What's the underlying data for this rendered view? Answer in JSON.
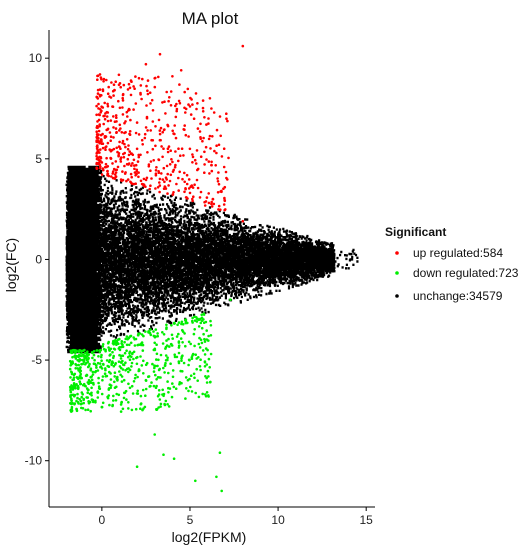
{
  "chart_data": {
    "type": "scatter",
    "title": "MA plot",
    "xlabel": "log2(FPKM)",
    "ylabel": "log2(FC)",
    "xlim": [
      -3.0,
      15.5
    ],
    "ylim": [
      -12.3,
      11.4
    ],
    "x_ticks": [
      0,
      5,
      10,
      15
    ],
    "y_ticks": [
      -10,
      -5,
      0,
      5,
      10
    ],
    "grid": false,
    "legend": {
      "title": "Significant",
      "position": "right",
      "entries": [
        {
          "label": "up regulated:584",
          "color": "#ff0000"
        },
        {
          "label": "down regulated:723",
          "color": "#00ee00"
        },
        {
          "label": "unchange:34579",
          "color": "#000000"
        }
      ]
    },
    "series": [
      {
        "name": "up regulated",
        "color": "#ff0000",
        "count": 584,
        "points": [
          [
            8.0,
            10.6
          ],
          [
            3.3,
            10.2
          ],
          [
            2.5,
            9.7
          ],
          [
            4.5,
            9.4
          ],
          [
            4.0,
            9.1
          ],
          [
            3.0,
            9.0
          ],
          [
            1.8,
            8.6
          ],
          [
            2.2,
            8.2
          ],
          [
            1.2,
            7.9
          ],
          [
            0.6,
            7.6
          ],
          [
            1.5,
            7.4
          ],
          [
            0.3,
            7.1
          ],
          [
            2.0,
            6.8
          ],
          [
            0.8,
            6.5
          ],
          [
            1.6,
            6.2
          ],
          [
            3.5,
            5.5
          ],
          [
            6.3,
            3.0
          ],
          [
            8.0,
            1.9
          ]
        ]
      },
      {
        "name": "down regulated",
        "color": "#00ee00",
        "count": 723,
        "points": [
          [
            6.8,
            -11.5
          ],
          [
            5.3,
            -11.0
          ],
          [
            6.5,
            -10.8
          ],
          [
            2.0,
            -10.3
          ],
          [
            6.7,
            -9.6
          ],
          [
            4.1,
            -9.9
          ],
          [
            3.5,
            -9.7
          ],
          [
            3.0,
            -8.7
          ],
          [
            1.5,
            -7.4
          ],
          [
            0.8,
            -7.0
          ],
          [
            -1.0,
            -6.2
          ],
          [
            0.2,
            -5.5
          ],
          [
            6.2,
            -4.7
          ],
          [
            5.5,
            -4.2
          ],
          [
            7.3,
            -2.0
          ]
        ]
      },
      {
        "name": "unchange",
        "color": "#000000",
        "count": 34579,
        "points": [
          [
            14.2,
            0.0
          ],
          [
            14.5,
            -0.1
          ],
          [
            13.9,
            0.2
          ],
          [
            12.5,
            0.4
          ],
          [
            11.2,
            0.5
          ],
          [
            10.0,
            1.0
          ]
        ]
      }
    ]
  }
}
